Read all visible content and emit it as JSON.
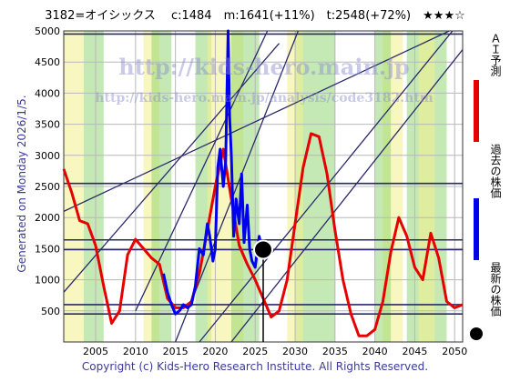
{
  "header": {
    "title": "3182=オイシックス　 c:1484　m:1641(+11%)　t:2548(+72%)　★★★☆"
  },
  "side_label": "Generated on Monday 2026/1/5.",
  "watermark": {
    "url1": "http://kids-hero.main.jp",
    "url2": "http://kids-hero.main.jp/analysis/code3182.htm"
  },
  "footer": {
    "copyright": "Copyright (c) Kids-Hero Research Institute. All Rights Reserved."
  },
  "legend": {
    "ai_forecast": "ＡＩ予測",
    "past_price": "過去の株価",
    "latest_price": "最新の株価"
  },
  "colors": {
    "ai_forecast": "#e60000",
    "past_price": "#0000ee",
    "latest_price": "#000000",
    "band_green": "#7ecf5a",
    "band_yellow": "#f2f08a",
    "grid": "#b8b8b8",
    "trendline": "#2a2a6a"
  },
  "chart_data": {
    "type": "line",
    "xlim": [
      2001,
      2051
    ],
    "ylim": [
      0,
      5000
    ],
    "x_ticks": [
      2005,
      2010,
      2015,
      2020,
      2025,
      2030,
      2035,
      2040,
      2045,
      2050
    ],
    "y_ticks": [
      500,
      1000,
      1500,
      2000,
      2500,
      3000,
      3500,
      4000,
      4500,
      5000
    ],
    "grid": true,
    "latest": {
      "x": 2026.0,
      "y": 1484
    },
    "horizontal_lines": [
      1484,
      1641,
      2548,
      4950,
      600,
      450
    ],
    "series": [
      {
        "name": "ＡＩ予測",
        "x": [
          2001,
          2002,
          2003,
          2004,
          2005,
          2006,
          2007,
          2008,
          2009,
          2010,
          2011,
          2012,
          2013,
          2014,
          2015,
          2016,
          2017,
          2018,
          2019,
          2020,
          2021,
          2022,
          2023,
          2024,
          2025,
          2026,
          2027,
          2028,
          2029,
          2030,
          2031,
          2032,
          2033,
          2034,
          2035,
          2036,
          2037,
          2038,
          2039,
          2040,
          2041,
          2042,
          2043,
          2044,
          2045,
          2046,
          2047,
          2048,
          2049,
          2050,
          2051
        ],
        "values": [
          2780,
          2400,
          1950,
          1900,
          1550,
          900,
          300,
          500,
          1400,
          1650,
          1500,
          1350,
          1250,
          700,
          550,
          550,
          650,
          1100,
          1800,
          2500,
          3100,
          2300,
          1550,
          1250,
          1000,
          700,
          400,
          500,
          1000,
          1900,
          2800,
          3350,
          3300,
          2700,
          1800,
          1000,
          450,
          100,
          100,
          200,
          650,
          1450,
          2000,
          1700,
          1200,
          1000,
          1750,
          1350,
          650,
          550,
          600
        ]
      },
      {
        "name": "過去の株価",
        "x": [
          2013.5,
          2014,
          2014.5,
          2015,
          2015.5,
          2016,
          2016.5,
          2017,
          2017.5,
          2018,
          2018.5,
          2019,
          2019.3,
          2019.7,
          2020,
          2020.3,
          2020.6,
          2021,
          2021.3,
          2021.6,
          2021.8,
          2022,
          2022.3,
          2022.6,
          2023,
          2023.3,
          2023.6,
          2024,
          2024.3,
          2024.6,
          2025,
          2025.5,
          2025.8,
          2026.0
        ],
        "values": [
          1100,
          800,
          600,
          450,
          500,
          600,
          550,
          600,
          900,
          1500,
          1400,
          1900,
          1700,
          1300,
          1500,
          2800,
          3100,
          2500,
          2900,
          5000,
          3600,
          3000,
          1700,
          2300,
          1900,
          2700,
          1600,
          2200,
          1500,
          1300,
          1200,
          1700,
          1500,
          1484
        ]
      }
    ]
  }
}
